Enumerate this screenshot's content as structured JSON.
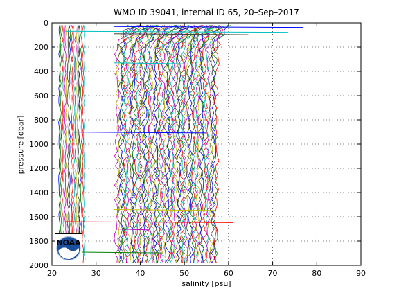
{
  "chart_data": {
    "type": "line",
    "title": "WMO ID 39041, internal ID 65, 20–Sep–2017",
    "xlabel": "salinity [psu]",
    "ylabel": "pressure [dbar]",
    "xlim": [
      20,
      90
    ],
    "ylim": [
      2000,
      0
    ],
    "y_reversed": true,
    "grid": true,
    "xticks": [
      20,
      30,
      40,
      50,
      60,
      70,
      80,
      90
    ],
    "yticks": [
      0,
      200,
      400,
      600,
      800,
      1000,
      1200,
      1400,
      1600,
      1800,
      2000
    ],
    "series_count": 80,
    "profile_groups": [
      {
        "salinity_range": [
          21.5,
          27.5
        ],
        "pressure_range": [
          20,
          2000
        ],
        "count": 18
      },
      {
        "salinity_range": [
          34.5,
          57.5
        ],
        "pressure_range": [
          20,
          2000
        ],
        "count": 62
      }
    ],
    "outlier_spikes": [
      {
        "salinity": 77,
        "pressure": 30
      },
      {
        "salinity": 73.5,
        "pressure": 70
      },
      {
        "salinity": 64.5,
        "pressure": 90
      },
      {
        "salinity": 61,
        "pressure": 1640
      },
      {
        "salinity": 57,
        "pressure": 1540
      },
      {
        "salinity": 45,
        "pressure": 1890
      },
      {
        "salinity": 42,
        "pressure": 1700
      },
      {
        "salinity": 55,
        "pressure": 900
      },
      {
        "salinity": 50,
        "pressure": 330
      }
    ],
    "colors": [
      "#0000ff",
      "#008000",
      "#ff0000",
      "#00bfbf",
      "#bf00bf",
      "#bfbf00",
      "#404040"
    ]
  },
  "logo": {
    "text": "NOAA"
  }
}
